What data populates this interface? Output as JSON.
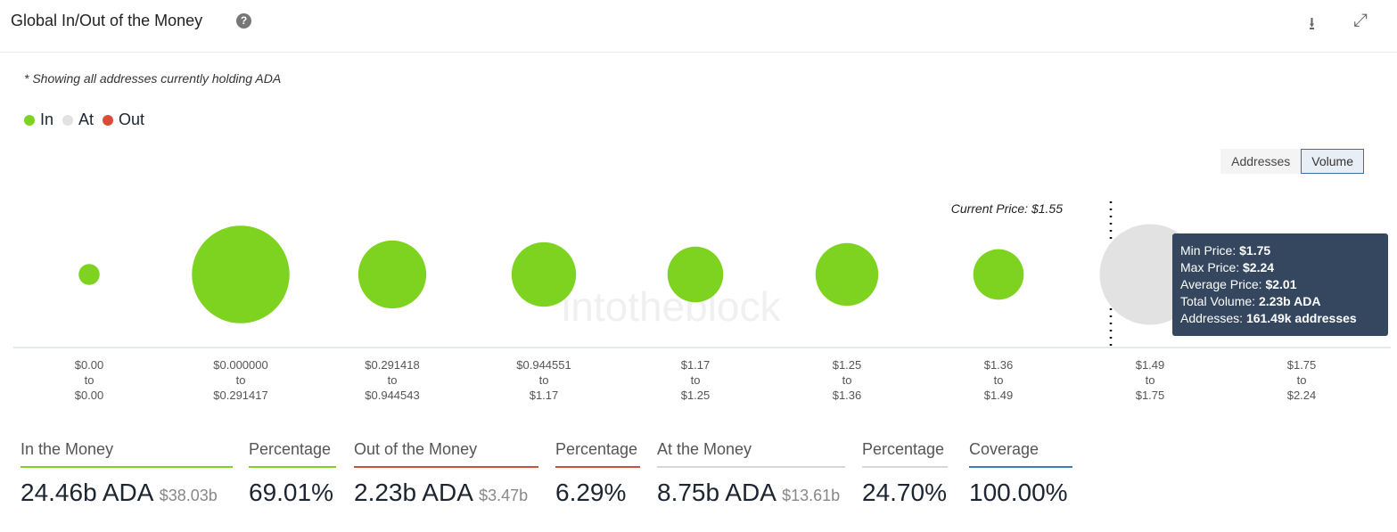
{
  "header": {
    "title": "Global In/Out of the Money",
    "help_icon": "question-circle-icon",
    "download_icon": "download-icon",
    "expand_icon": "expand-icon"
  },
  "note": "* Showing all addresses currently holding ADA",
  "legend": [
    {
      "label": "In",
      "color": "#7ed321"
    },
    {
      "label": "At",
      "color": "#e2e2e2"
    },
    {
      "label": "Out",
      "color": "#d94c35"
    }
  ],
  "toggle": {
    "addresses": "Addresses",
    "volume": "Volume",
    "active": "Volume"
  },
  "chart_data": {
    "type": "bubble",
    "current_price_label": "Current Price: $1.55",
    "current_price": 1.55,
    "buckets": [
      {
        "from": "$0.00",
        "to": "$0.00",
        "status": "in",
        "volume_b_ada": 0.38
      },
      {
        "from": "$0.000000",
        "to": "$0.291417",
        "status": "in",
        "volume_b_ada": 8.22
      },
      {
        "from": "$0.291418",
        "to": "$0.944543",
        "status": "in",
        "volume_b_ada": 3.99
      },
      {
        "from": "$0.944551",
        "to": "$1.17",
        "status": "in",
        "volume_b_ada": 3.59
      },
      {
        "from": "$1.17",
        "to": "$1.25",
        "status": "in",
        "volume_b_ada": 2.68
      },
      {
        "from": "$1.25",
        "to": "$1.36",
        "status": "in",
        "volume_b_ada": 3.4
      },
      {
        "from": "$1.36",
        "to": "$1.49",
        "status": "in",
        "volume_b_ada": 2.2
      },
      {
        "from": "$1.49",
        "to": "$1.75",
        "status": "at",
        "volume_b_ada": 8.75
      },
      {
        "from": "$1.75",
        "to": "$2.24",
        "status": "out",
        "volume_b_ada": 2.23
      }
    ],
    "tooltip": {
      "rows": [
        {
          "k": "Min Price: ",
          "v": "$1.75"
        },
        {
          "k": "Max Price: ",
          "v": "$2.24"
        },
        {
          "k": "Average Price: ",
          "v": "$2.01"
        },
        {
          "k": "Total Volume: ",
          "v": "2.23b ADA"
        },
        {
          "k": "Addresses: ",
          "v": "161.49k addresses"
        }
      ]
    }
  },
  "watermark": "intotheblock",
  "stats": [
    {
      "label": "In the Money",
      "value": "24.46b ADA",
      "sub": "$38.03b",
      "color": "#7ed321"
    },
    {
      "label": "Percentage",
      "value": "69.01%",
      "color": "#7ed321"
    },
    {
      "label": "Out of the Money",
      "value": "2.23b ADA",
      "sub": "$3.47b",
      "color": "#c9513d"
    },
    {
      "label": "Percentage",
      "value": "6.29%",
      "color": "#c9513d"
    },
    {
      "label": "At the Money",
      "value": "8.75b ADA",
      "sub": "$13.61b",
      "color": "#d8d8d8"
    },
    {
      "label": "Percentage",
      "value": "24.70%",
      "color": "#d8d8d8"
    },
    {
      "label": "Coverage",
      "value": "100.00%",
      "color": "#3b7dc4"
    }
  ]
}
